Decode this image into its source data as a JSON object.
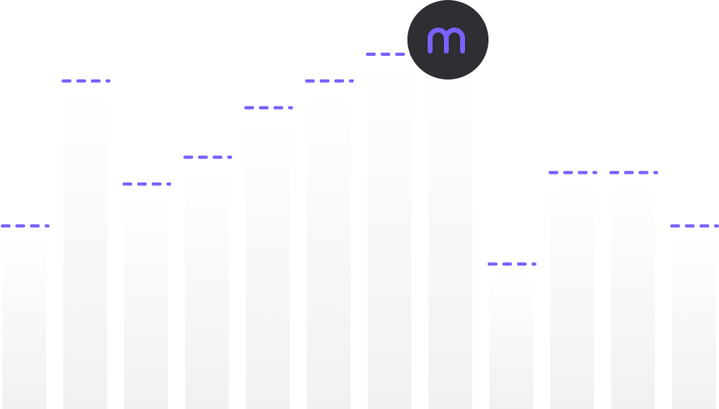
{
  "logo": {
    "icon": "m-logo-icon",
    "badge_color": "#2e2e33",
    "glyph_color": "#7b61ff"
  },
  "colors": {
    "accent": "#7b61ff",
    "bar_top": "#ffffff",
    "bar_bottom": "#f0f1f1"
  },
  "chart_data": {
    "type": "bar",
    "title": "",
    "xlabel": "",
    "ylabel": "",
    "grid": false,
    "legend": "none",
    "ylim": [
      0,
      100
    ],
    "values": [
      48,
      86,
      59,
      66,
      79,
      86,
      93,
      93,
      38,
      62,
      62,
      48
    ],
    "target_marker": "dashed-line"
  }
}
